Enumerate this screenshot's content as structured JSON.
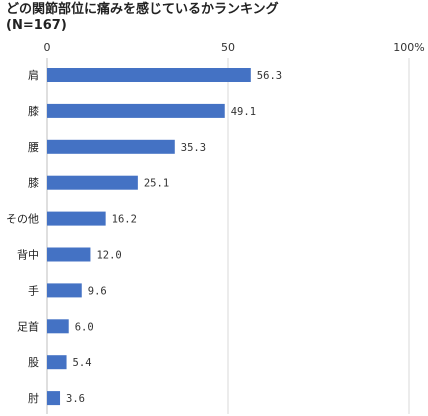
{
  "chart_data": {
    "type": "bar",
    "orientation": "horizontal",
    "title_lines": [
      "どの関節部位に痛みを感じているかランキング",
      "(N=167)"
    ],
    "categories": [
      "肩",
      "膝",
      "腰",
      "膝",
      "その他",
      "背中",
      "手",
      "足首",
      "股",
      "肘"
    ],
    "values": [
      56.3,
      49.1,
      35.3,
      25.1,
      16.2,
      12.0,
      9.6,
      6.0,
      5.4,
      3.6
    ],
    "value_labels": [
      "56.3",
      "49.1",
      "35.3",
      "25.1",
      "16.2",
      "12.0",
      "9.6",
      "6.0",
      "5.4",
      "3.6"
    ],
    "x_ticks": [
      {
        "value": 0,
        "label": "0"
      },
      {
        "value": 50,
        "label": "50"
      },
      {
        "value": 100,
        "label": "100%"
      }
    ],
    "xlim": [
      0,
      100
    ],
    "xlabel": "",
    "ylabel": "",
    "grid": true,
    "legend": "none",
    "bar_color": "#4472c4"
  }
}
